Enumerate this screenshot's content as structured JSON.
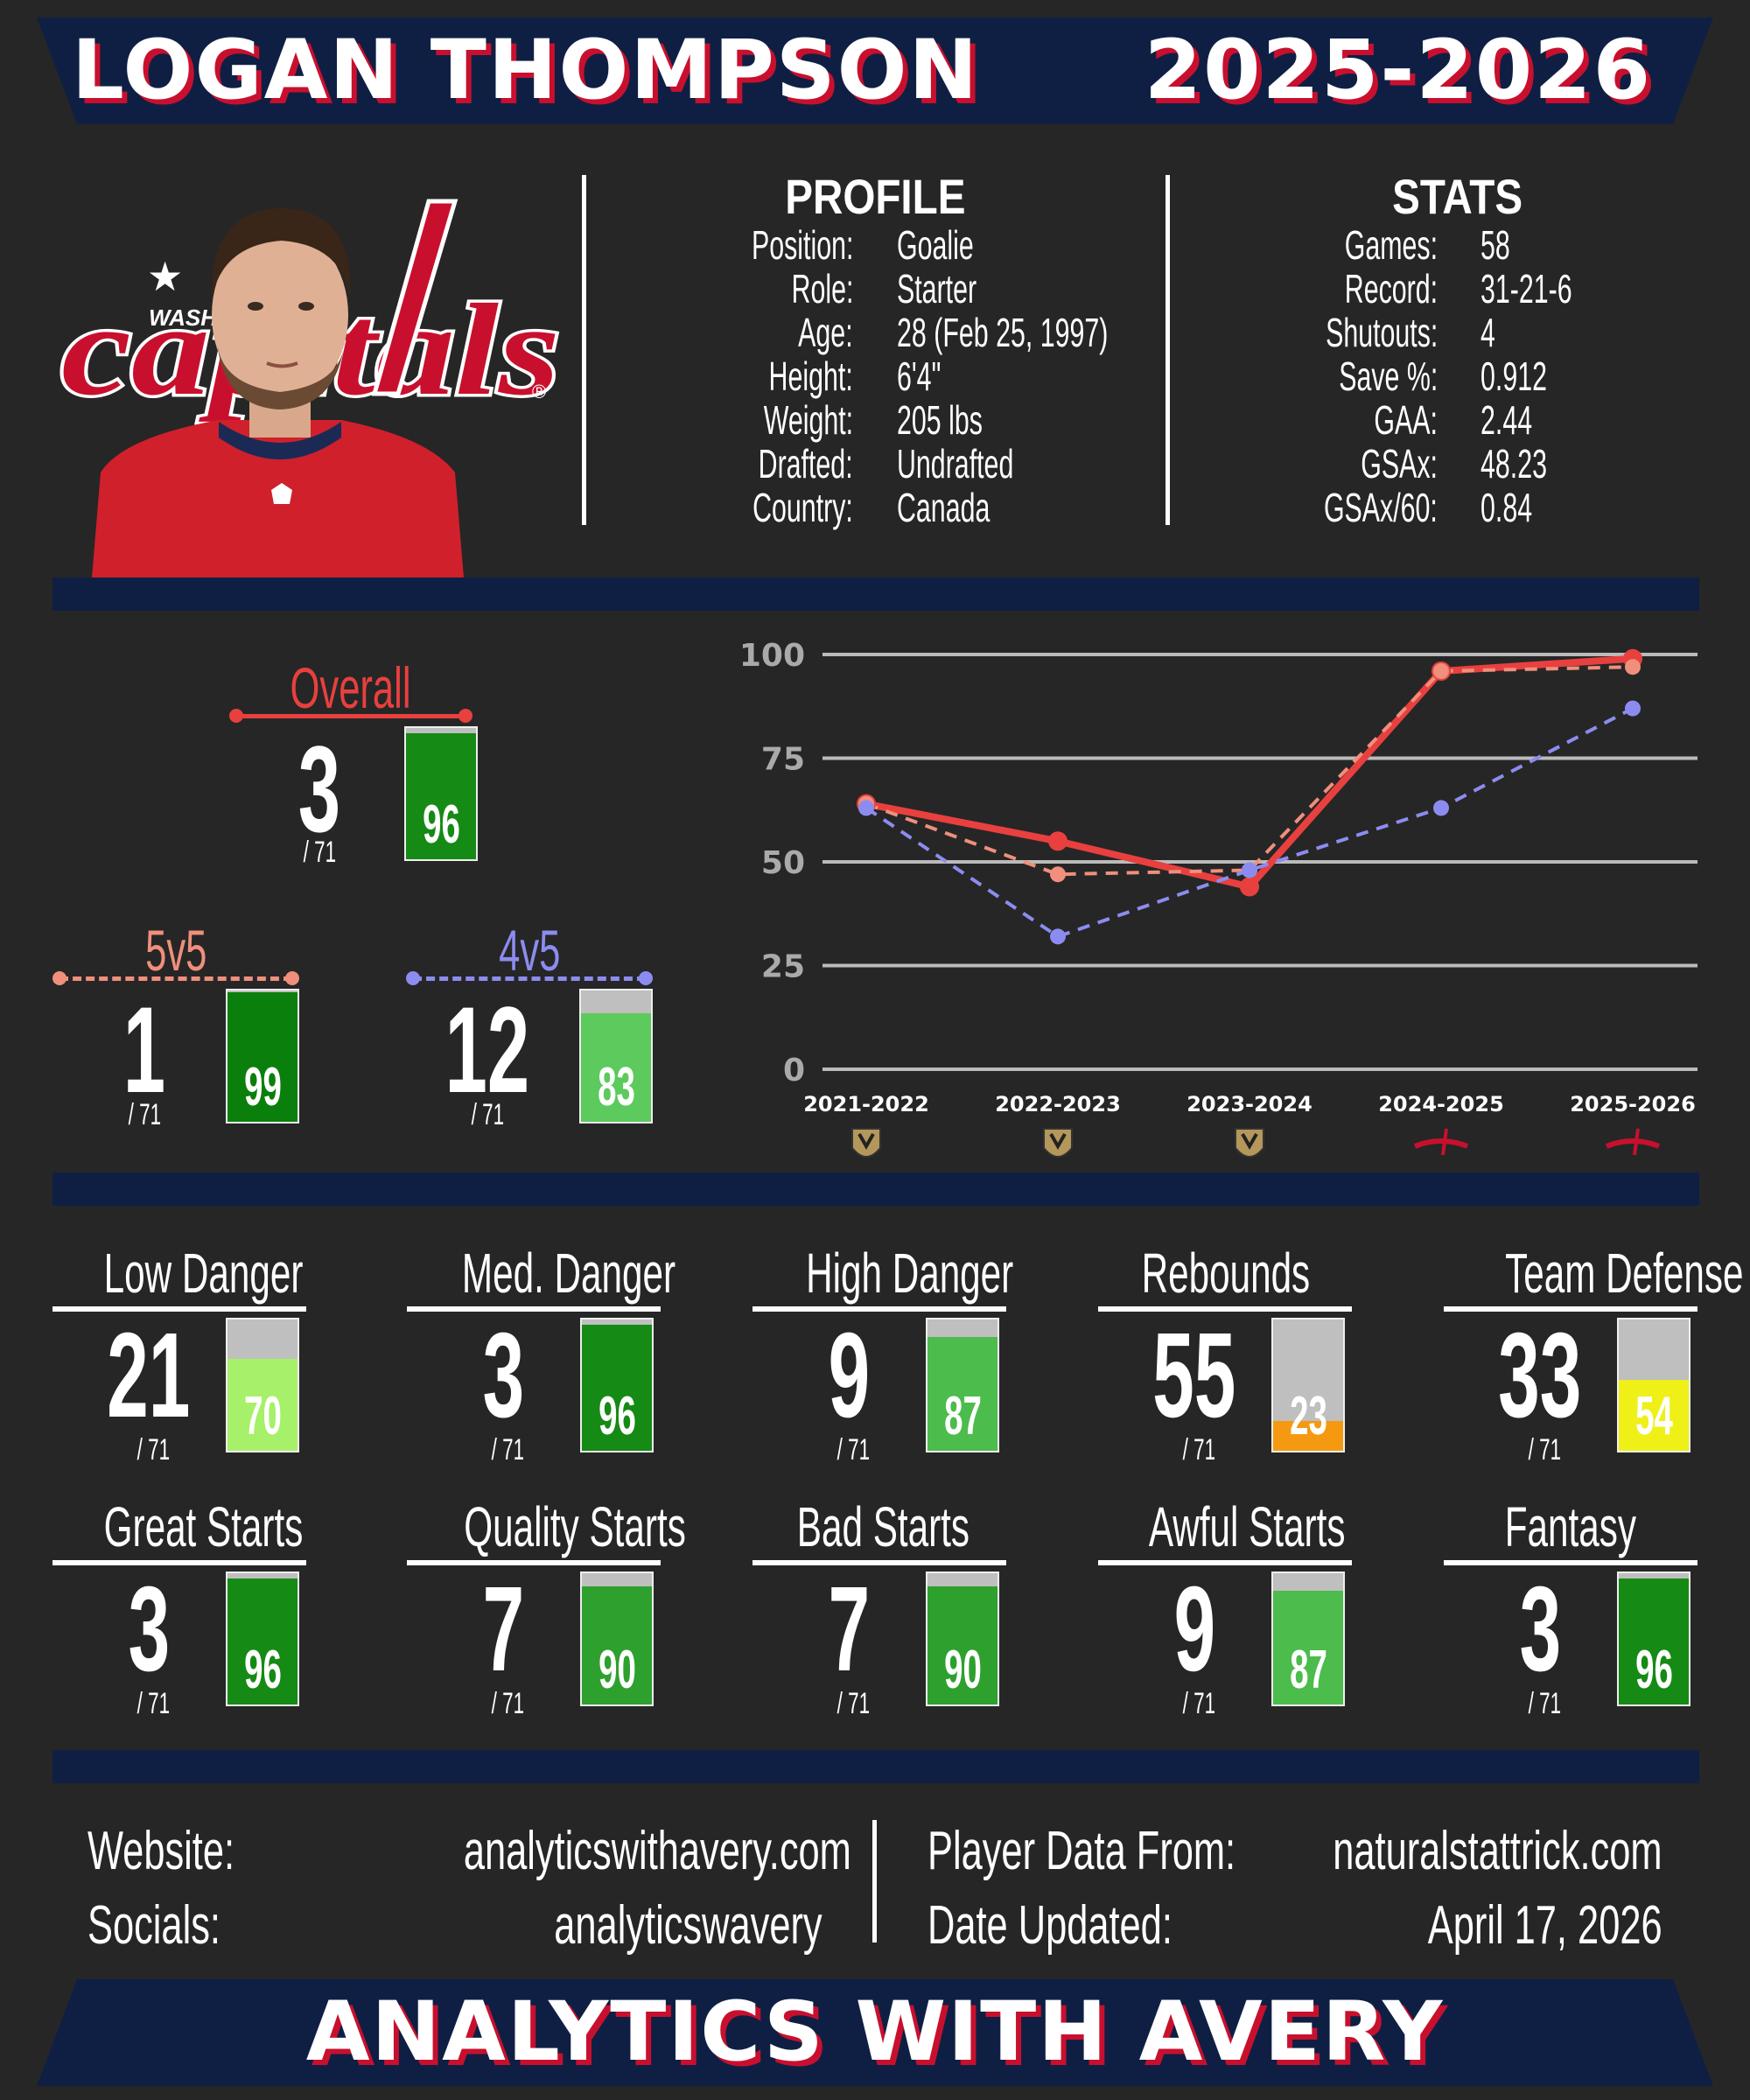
{
  "header": {
    "player_name": "LOGAN THOMPSON",
    "season": "2025-2026"
  },
  "profile": {
    "title": "PROFILE",
    "rows": [
      {
        "label": "Position:",
        "value": "Goalie"
      },
      {
        "label": "Role:",
        "value": "Starter"
      },
      {
        "label": "Age:",
        "value": "28 (Feb 25, 1997)"
      },
      {
        "label": "Height:",
        "value": "6'4\""
      },
      {
        "label": "Weight:",
        "value": "205 lbs"
      },
      {
        "label": "Drafted:",
        "value": "Undrafted"
      },
      {
        "label": "Country:",
        "value": "Canada"
      }
    ]
  },
  "stats": {
    "title": "STATS",
    "rows": [
      {
        "label": "Games:",
        "value": "58"
      },
      {
        "label": "Record:",
        "value": "31-21-6"
      },
      {
        "label": "Shutouts:",
        "value": "4"
      },
      {
        "label": "Save %:",
        "value": "0.912"
      },
      {
        "label": "GAA:",
        "value": "2.44"
      },
      {
        "label": "GSAx:",
        "value": "48.23"
      },
      {
        "label": "GSAx/60:",
        "value": "0.84"
      }
    ]
  },
  "logo": {
    "wash": "WASH",
    "script": "capitals",
    "reg": "®"
  },
  "colors": {
    "red": "#e8403f",
    "salmon": "#f08f7c",
    "blue": "#8c8cf0",
    "navy": "#0f1f44",
    "gray_bar": "#bfbfbf"
  },
  "ratings": {
    "overall": {
      "label": "Overall",
      "rank": "3",
      "of": "/ 71",
      "pct": 96,
      "pct_label": "96",
      "color": "#158a15"
    },
    "ev": {
      "label": "5v5",
      "rank": "1",
      "of": "/ 71",
      "pct": 99,
      "pct_label": "99",
      "color": "#0b7f0b"
    },
    "pk": {
      "label": "4v5",
      "rank": "12",
      "of": "/ 71",
      "pct": 83,
      "pct_label": "83",
      "color": "#5cca5c"
    }
  },
  "chart_data": {
    "type": "line",
    "categories": [
      "2021-2022",
      "2022-2023",
      "2023-2024",
      "2024-2025",
      "2025-2026"
    ],
    "team_icons": [
      "vgk-logo-icon",
      "vgk-logo-icon",
      "vgk-logo-icon",
      "capitals-logo-icon",
      "capitals-logo-icon"
    ],
    "ylim": [
      0,
      100
    ],
    "yticks": [
      0,
      25,
      50,
      75,
      100
    ],
    "grid": true,
    "series": [
      {
        "key": "overall",
        "style": "solid",
        "color": "#e8403f",
        "values": [
          64,
          null,
          null,
          96,
          99
        ],
        "full": [
          64,
          55,
          44,
          96,
          99
        ]
      },
      {
        "key": "5v5",
        "style": "dashed",
        "color": "#f08f7c",
        "values": [
          64,
          47,
          48,
          96,
          97
        ]
      },
      {
        "key": "4v5",
        "style": "dashed",
        "color": "#8c8cf0",
        "values": [
          63,
          32,
          48,
          63,
          87
        ]
      }
    ]
  },
  "metrics": [
    {
      "name": "Low Danger",
      "rank": "21",
      "of": "/ 71",
      "pct": 70,
      "pct_label": "70",
      "color": "#a7f06a"
    },
    {
      "name": "Med. Danger",
      "rank": "3",
      "of": "/ 71",
      "pct": 96,
      "pct_label": "96",
      "color": "#158a15"
    },
    {
      "name": "High Danger",
      "rank": "9",
      "of": "/ 71",
      "pct": 87,
      "pct_label": "87",
      "color": "#4cbc4c"
    },
    {
      "name": "Rebounds",
      "rank": "55",
      "of": "/ 71",
      "pct": 23,
      "pct_label": "23",
      "color": "#f59a10"
    },
    {
      "name": "Team Defense",
      "rank": "33",
      "of": "/ 71",
      "pct": 54,
      "pct_label": "54",
      "color": "#eef018"
    },
    {
      "name": "Great Starts",
      "rank": "3",
      "of": "/ 71",
      "pct": 96,
      "pct_label": "96",
      "color": "#158a15"
    },
    {
      "name": "Quality Starts",
      "rank": "7",
      "of": "/ 71",
      "pct": 90,
      "pct_label": "90",
      "color": "#2ea02e"
    },
    {
      "name": "Bad Starts",
      "rank": "7",
      "of": "/ 71",
      "pct": 90,
      "pct_label": "90",
      "color": "#2ea02e"
    },
    {
      "name": "Awful Starts",
      "rank": "9",
      "of": "/ 71",
      "pct": 87,
      "pct_label": "87",
      "color": "#4cbc4c"
    },
    {
      "name": "Fantasy",
      "rank": "3",
      "of": "/ 71",
      "pct": 96,
      "pct_label": "96",
      "color": "#158a15"
    }
  ],
  "footer": {
    "website_label": "Website:",
    "website_value": "analyticswithavery.com",
    "socials_label": "Socials:",
    "socials_value": "analyticswavery",
    "data_label": "Player Data From:",
    "data_value": "naturalstattrick.com",
    "updated_label": "Date Updated:",
    "updated_value": "April 17, 2026",
    "brand": "ANALYTICS WITH AVERY"
  }
}
